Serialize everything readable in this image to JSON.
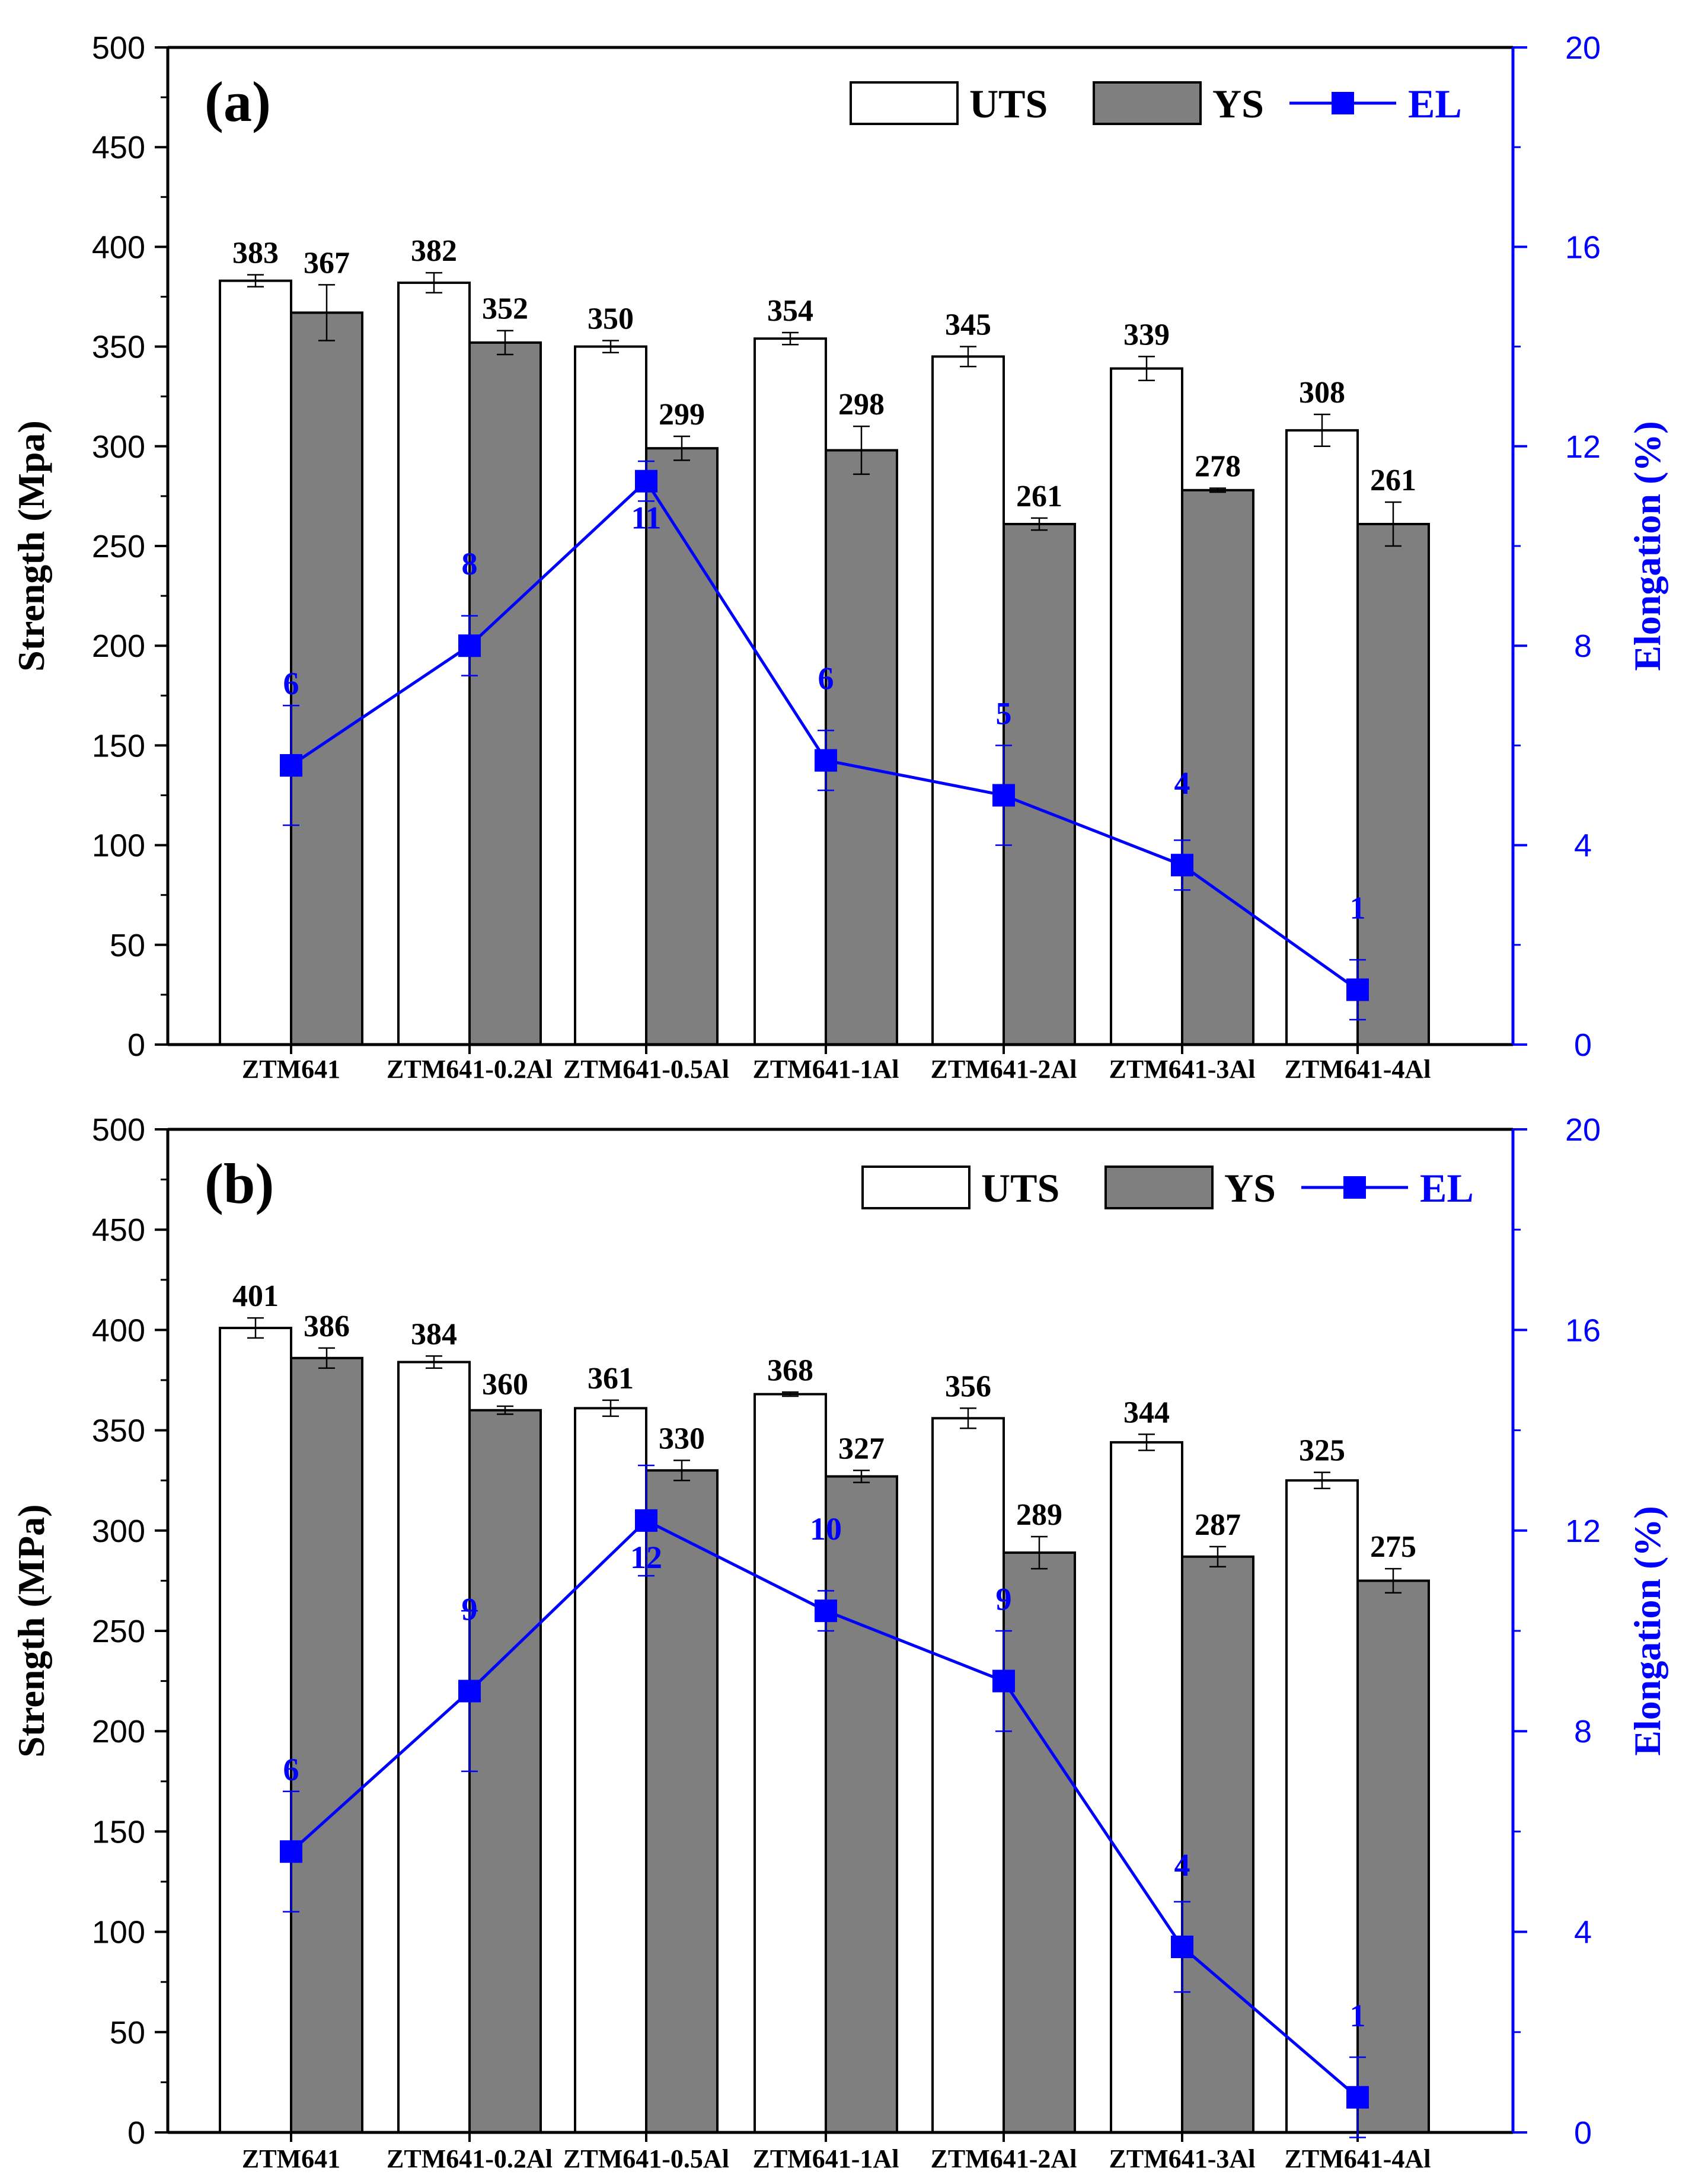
{
  "chart_data": [
    {
      "type": "bar",
      "panel_label": "(a)",
      "title": "",
      "categories": [
        "ZTM641",
        "ZTM641-0.2Al",
        "ZTM641-0.5Al",
        "ZTM641-1Al",
        "ZTM641-2Al",
        "ZTM641-3Al",
        "ZTM641-4Al"
      ],
      "ylabel": "Strength (Mpa)",
      "y2label": "Elongation (%)",
      "ylim": [
        0,
        500
      ],
      "y2lim": [
        0,
        20
      ],
      "yticks": [
        0,
        50,
        100,
        150,
        200,
        250,
        300,
        350,
        400,
        450,
        500
      ],
      "y2ticks": [
        0,
        4,
        8,
        12,
        16,
        20
      ],
      "legend": [
        "UTS",
        "YS",
        "EL"
      ],
      "series": [
        {
          "name": "UTS",
          "kind": "bar",
          "color": "#ffffff",
          "values": [
            383,
            382,
            350,
            354,
            345,
            339,
            308
          ],
          "errors": [
            3,
            5,
            3,
            3,
            5,
            6,
            8
          ],
          "labels": [
            "383",
            "382",
            "350",
            "354",
            "345",
            "339",
            "308"
          ]
        },
        {
          "name": "YS",
          "kind": "bar",
          "color": "#7f7f7f",
          "values": [
            367,
            352,
            299,
            298,
            261,
            278,
            261
          ],
          "errors": [
            14,
            6,
            6,
            12,
            3,
            1,
            11
          ],
          "labels": [
            "367",
            "352",
            "299",
            "298",
            "261",
            "278",
            "261"
          ]
        },
        {
          "name": "EL",
          "kind": "line",
          "axis": "y2",
          "color": "#0000ff",
          "values": [
            5.6,
            8.0,
            11.3,
            5.7,
            5.0,
            3.6,
            1.1
          ],
          "errors": [
            1.2,
            0.6,
            0.4,
            0.6,
            1.0,
            0.5,
            0.6
          ],
          "labels": [
            "6",
            "8",
            "11",
            "6",
            "5",
            "4",
            "1"
          ]
        }
      ]
    },
    {
      "type": "bar",
      "panel_label": "(b)",
      "title": "",
      "categories": [
        "ZTM641",
        "ZTM641-0.2Al",
        "ZTM641-0.5Al",
        "ZTM641-1Al",
        "ZTM641-2Al",
        "ZTM641-3Al",
        "ZTM641-4Al"
      ],
      "ylabel": "Strength (MPa)",
      "y2label": "Elongation (%)",
      "ylim": [
        0,
        500
      ],
      "y2lim": [
        0,
        20
      ],
      "yticks": [
        0,
        50,
        100,
        150,
        200,
        250,
        300,
        350,
        400,
        450,
        500
      ],
      "y2ticks": [
        0,
        4,
        8,
        12,
        16,
        20
      ],
      "legend": [
        "UTS",
        "YS",
        "EL"
      ],
      "series": [
        {
          "name": "UTS",
          "kind": "bar",
          "color": "#ffffff",
          "values": [
            401,
            384,
            361,
            368,
            356,
            344,
            325
          ],
          "errors": [
            5,
            3,
            4,
            1,
            5,
            4,
            4
          ],
          "labels": [
            "401",
            "384",
            "361",
            "368",
            "356",
            "344",
            "325"
          ]
        },
        {
          "name": "YS",
          "kind": "bar",
          "color": "#7f7f7f",
          "values": [
            386,
            360,
            330,
            327,
            289,
            287,
            275
          ],
          "errors": [
            5,
            2,
            5,
            3,
            8,
            5,
            6
          ],
          "labels": [
            "386",
            "360",
            "330",
            "327",
            "289",
            "287",
            "275"
          ]
        },
        {
          "name": "EL",
          "kind": "line",
          "axis": "y2",
          "color": "#0000ff",
          "values": [
            5.6,
            8.8,
            12.2,
            10.4,
            9.0,
            3.7,
            0.7
          ],
          "errors": [
            1.2,
            1.6,
            1.1,
            0.4,
            1.0,
            0.9,
            0.8
          ],
          "labels": [
            "6",
            "9",
            "12",
            "10",
            "9",
            "4",
            "1"
          ]
        }
      ]
    }
  ]
}
